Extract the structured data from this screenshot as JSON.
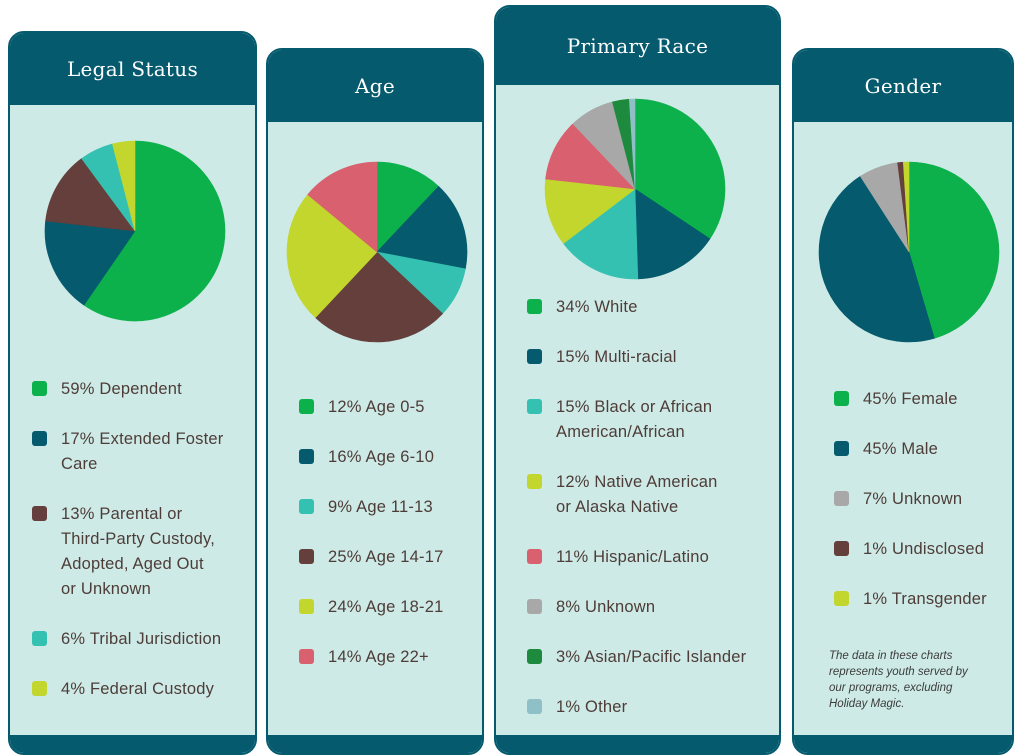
{
  "chart_data": [
    {
      "type": "pie",
      "title": "Legal Status",
      "labels": [
        "59% Dependent",
        "17% Extended Foster Care",
        "13% Parental or Third-Party Custody, Adopted, Aged Out or Unknown",
        "6% Tribal Jurisdiction",
        "4% Federal Custody"
      ],
      "legend_lines": [
        [
          "59% Dependent"
        ],
        [
          "17% Extended Foster",
          "Care"
        ],
        [
          "13% Parental or",
          "Third-Party Custody,",
          "Adopted, Aged Out",
          "or Unknown"
        ],
        [
          "6% Tribal Jurisdiction"
        ],
        [
          "4% Federal Custody"
        ]
      ],
      "values": [
        59,
        17,
        13,
        6,
        4
      ],
      "colors": [
        "#0db14b",
        "#055a6d",
        "#643f3c",
        "#35c1b1",
        "#c2d62e"
      ]
    },
    {
      "type": "pie",
      "title": "Age",
      "labels": [
        "12% Age 0-5",
        "16% Age 6-10",
        "9% Age 11-13",
        "25% Age 14-17",
        "24% Age 18-21",
        "14% Age 22+"
      ],
      "legend_lines": [
        [
          "12% Age 0-5"
        ],
        [
          "16% Age 6-10"
        ],
        [
          "9% Age 11-13"
        ],
        [
          "25% Age 14-17"
        ],
        [
          "24% Age 18-21"
        ],
        [
          "14% Age 22+"
        ]
      ],
      "values": [
        12,
        16,
        9,
        25,
        24,
        14
      ],
      "colors": [
        "#0db14b",
        "#055a6d",
        "#35c1b1",
        "#643f3c",
        "#c2d62e",
        "#d9606e"
      ]
    },
    {
      "type": "pie",
      "title": "Primary Race",
      "labels": [
        "34% White",
        "15% Multi-racial",
        "15% Black or African American/African",
        "12% Native American or Alaska Native",
        "11% Hispanic/Latino",
        "8% Unknown",
        "3% Asian/Pacific Islander",
        "1% Other"
      ],
      "legend_lines": [
        [
          "34% White"
        ],
        [
          "15% Multi-racial"
        ],
        [
          "15% Black or African",
          "American/African"
        ],
        [
          "12% Native American",
          "or Alaska Native"
        ],
        [
          "11% Hispanic/Latino"
        ],
        [
          "8% Unknown"
        ],
        [
          "3% Asian/Pacific Islander"
        ],
        [
          "1% Other"
        ]
      ],
      "values": [
        34,
        15,
        15,
        12,
        11,
        8,
        3,
        1
      ],
      "colors": [
        "#0db14b",
        "#055a6d",
        "#35c1b1",
        "#c2d62e",
        "#d9606e",
        "#a8a8a8",
        "#1e8a3e",
        "#8fbfc7"
      ]
    },
    {
      "type": "pie",
      "title": "Gender",
      "labels": [
        "45% Female",
        "45% Male",
        "7% Unknown",
        "1% Undisclosed",
        "1% Transgender"
      ],
      "legend_lines": [
        [
          "45% Female"
        ],
        [
          "45% Male"
        ],
        [
          "7% Unknown"
        ],
        [
          "1% Undisclosed"
        ],
        [
          "1% Transgender"
        ]
      ],
      "values": [
        45,
        45,
        7,
        1,
        1
      ],
      "colors": [
        "#0db14b",
        "#055a6d",
        "#a8a8a8",
        "#643f3c",
        "#c2d62e"
      ]
    }
  ],
  "note": "The data in these charts represents youth served by our programs, excluding Holiday Magic.",
  "note_lines": [
    "The data in these charts",
    "represents youth served by",
    "our programs, excluding",
    "Holiday Magic."
  ]
}
